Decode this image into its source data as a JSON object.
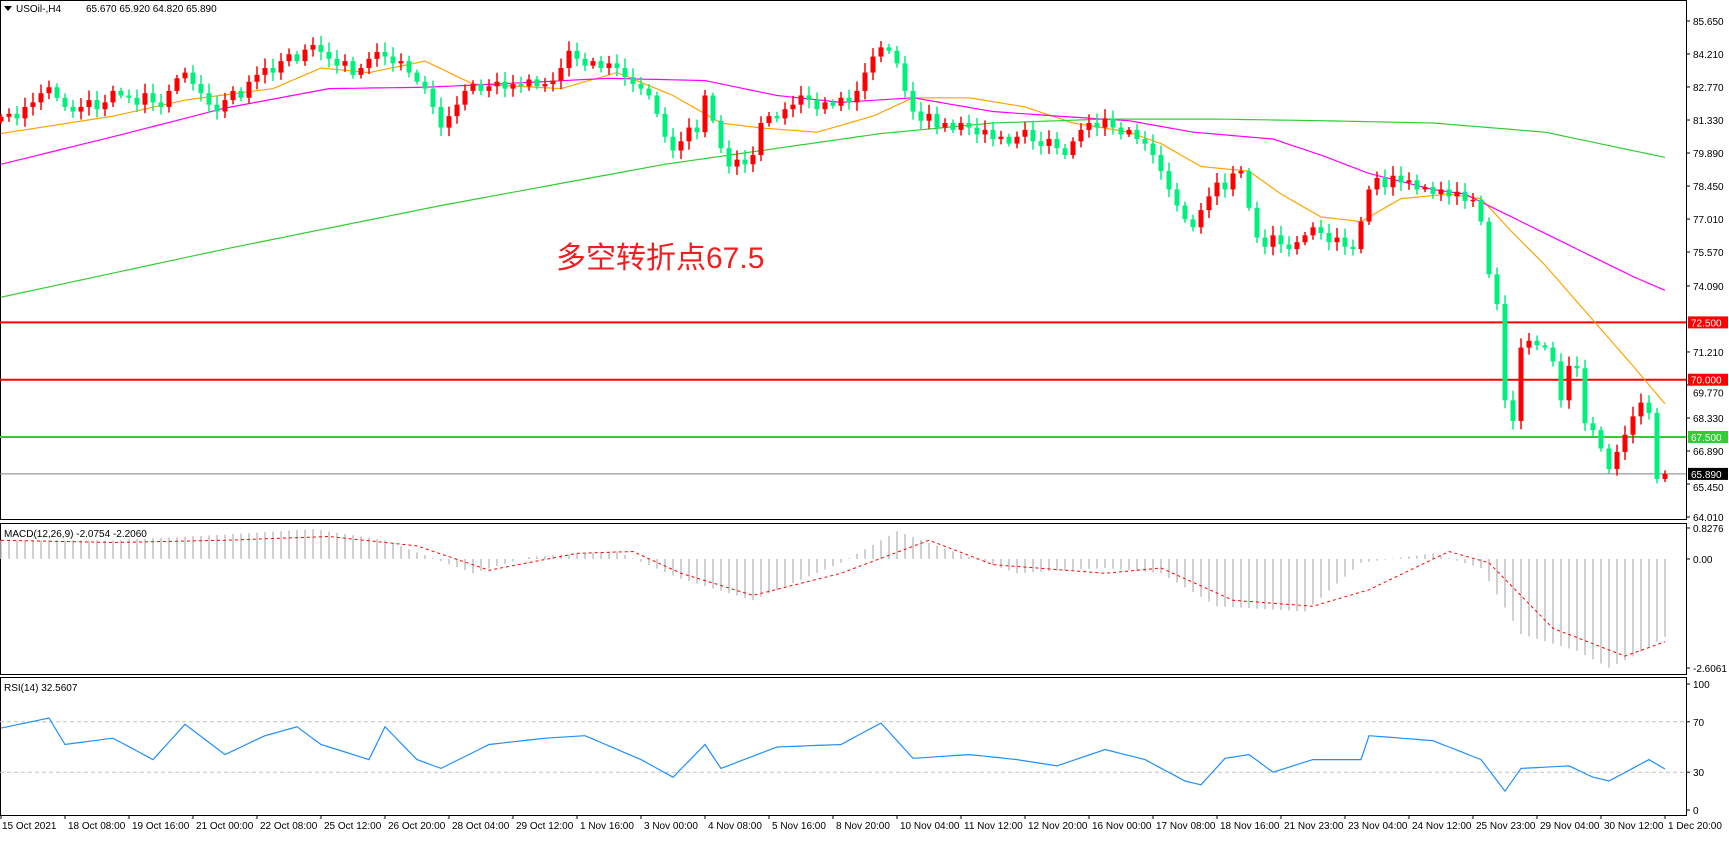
{
  "header": {
    "symbol": "USOil-,H4",
    "ohlc": "65.670 65.920 64.820 65.890"
  },
  "annotation": "多空转折点67.5",
  "colors": {
    "up": "#ff0000",
    "down": "#00f07c",
    "ma_fast": "#ffa500",
    "ma_mid": "#ff00ff",
    "ma_slow": "#32cd32",
    "level_red": "#ff0000",
    "level_green": "#32cd32",
    "macd_hist": "#c0c0c0",
    "macd_signal": "#ff0000",
    "rsi": "#1e90ff"
  },
  "price_axis": [
    "85.650",
    "84.210",
    "82.770",
    "81.330",
    "79.890",
    "78.450",
    "77.010",
    "75.570",
    "74.090",
    "71.210",
    "69.770",
    "68.330",
    "66.890",
    "65.450",
    "64.010"
  ],
  "levels": [
    {
      "label": "72.500",
      "value": 72.5,
      "color": "#ff0000"
    },
    {
      "label": "70.000",
      "value": 70.0,
      "color": "#ff0000"
    },
    {
      "label": "67.500",
      "value": 67.5,
      "color": "#32cd32"
    }
  ],
  "current_price": {
    "label": "65.890",
    "value": 65.89
  },
  "macd": {
    "title": "MACD(12,26,9) -2.0754 -2.2060",
    "axis": [
      "0.8276",
      "0.00",
      "-2.6061"
    ]
  },
  "rsi": {
    "title": "RSI(14) 32.5607",
    "axis": [
      "100",
      "70",
      "30",
      "0"
    ],
    "levels": [
      70,
      30
    ]
  },
  "time_axis": [
    "15 Oct 2021",
    "18 Oct 08:00",
    "19 Oct 16:00",
    "21 Oct 00:00",
    "22 Oct 08:00",
    "25 Oct 12:00",
    "26 Oct 20:00",
    "28 Oct 04:00",
    "29 Oct 12:00",
    "1 Nov 16:00",
    "3 Nov 00:00",
    "4 Nov 08:00",
    "5 Nov 16:00",
    "8 Nov 20:00",
    "10 Nov 04:00",
    "11 Nov 12:00",
    "12 Nov 20:00",
    "16 Nov 00:00",
    "17 Nov 08:00",
    "18 Nov 16:00",
    "21 Nov 23:00",
    "23 Nov 04:00",
    "24 Nov 12:00",
    "25 Nov 23:00",
    "29 Nov 04:00",
    "30 Nov 12:00",
    "1 Dec 20:00"
  ],
  "chart_data": {
    "type": "candlestick",
    "timeframe": "H4",
    "ylim": [
      64.01,
      85.65
    ],
    "close": [
      81.47,
      81.6,
      81.4,
      81.9,
      82.1,
      82.5,
      82.76,
      82.3,
      81.9,
      81.7,
      81.9,
      82.2,
      81.8,
      82.1,
      82.6,
      82.4,
      82.3,
      82.0,
      82.5,
      82.1,
      81.9,
      82.6,
      83.15,
      83.4,
      82.9,
      82.5,
      82.0,
      81.7,
      82.2,
      82.6,
      82.3,
      83.0,
      83.3,
      83.6,
      83.4,
      83.9,
      84.2,
      83.9,
      84.4,
      84.6,
      84.3,
      84.0,
      83.7,
      83.9,
      83.3,
      83.6,
      84.0,
      84.3,
      84.1,
      83.8,
      83.9,
      83.4,
      83.0,
      82.7,
      81.9,
      81.0,
      81.5,
      82.0,
      82.6,
      82.9,
      82.6,
      82.8,
      83.0,
      82.7,
      82.9,
      82.8,
      83.1,
      82.8,
      82.9,
      83.05,
      83.6,
      84.35,
      84.0,
      83.7,
      83.9,
      83.6,
      83.8,
      83.6,
      83.2,
      82.9,
      82.7,
      82.4,
      81.6,
      80.6,
      80.0,
      80.4,
      81.0,
      80.8,
      82.4,
      81.3,
      80.1,
      79.3,
      79.6,
      79.4,
      79.8,
      81.2,
      81.5,
      81.4,
      81.8,
      82.0,
      82.4,
      82.2,
      81.8,
      82.1,
      81.95,
      82.3,
      82.1,
      82.6,
      83.4,
      84.1,
      84.5,
      84.35,
      83.8,
      82.6,
      81.7,
      81.3,
      81.6,
      81.0,
      81.2,
      80.9,
      81.2,
      81.0,
      80.7,
      80.9,
      80.5,
      80.6,
      80.3,
      80.6,
      80.9,
      80.4,
      80.2,
      80.5,
      80.1,
      79.8,
      80.4,
      80.9,
      81.2,
      81.0,
      81.4,
      81.0,
      80.7,
      80.9,
      80.5,
      80.3,
      79.8,
      79.1,
      78.3,
      77.6,
      77.0,
      76.65,
      77.4,
      78.0,
      78.6,
      78.3,
      79.0,
      79.1,
      77.5,
      76.2,
      75.8,
      76.3,
      75.9,
      75.7,
      76.0,
      76.3,
      76.65,
      76.4,
      76.0,
      76.2,
      75.8,
      75.7,
      76.9,
      78.3,
      78.8,
      78.4,
      78.9,
      78.6,
      78.7,
      78.3,
      78.4,
      78.1,
      78.3,
      78.0,
      78.2,
      77.8,
      77.85,
      76.9,
      74.6,
      73.3,
      69.1,
      68.2,
      71.4,
      71.7,
      71.5,
      71.4,
      70.8,
      69.1,
      70.6,
      70.5,
      68.1,
      67.8,
      67.0,
      66.1,
      66.85,
      67.6,
      68.4,
      69.0,
      68.55,
      65.67,
      65.89
    ],
    "moving_averages": [
      {
        "color": "#ffa500",
        "points": [
          [
            0,
            80.74
          ],
          [
            14,
            81.5
          ],
          [
            23,
            82.2
          ],
          [
            34,
            82.7
          ],
          [
            40,
            83.6
          ],
          [
            46,
            83.4
          ],
          [
            53,
            83.9
          ],
          [
            59,
            82.9
          ],
          [
            70,
            82.7
          ],
          [
            77,
            83.4
          ],
          [
            84,
            82.4
          ],
          [
            90,
            81.2
          ],
          [
            95,
            80.98
          ],
          [
            102,
            80.8
          ],
          [
            109,
            81.5
          ],
          [
            114,
            82.3
          ],
          [
            121,
            82.3
          ],
          [
            128,
            81.9
          ],
          [
            134,
            81.2
          ],
          [
            141,
            80.8
          ],
          [
            145,
            80.3
          ],
          [
            150,
            79.3
          ],
          [
            156,
            79.1
          ],
          [
            160,
            78.1
          ],
          [
            165,
            77.1
          ],
          [
            170,
            76.9
          ],
          [
            175,
            77.9
          ],
          [
            181,
            78.1
          ],
          [
            185,
            77.9
          ],
          [
            189,
            76.4
          ],
          [
            193,
            75.0
          ],
          [
            199,
            72.6
          ],
          [
            204,
            70.6
          ],
          [
            208,
            68.95
          ]
        ]
      },
      {
        "color": "#ff00ff",
        "points": [
          [
            0,
            79.4
          ],
          [
            14,
            80.6
          ],
          [
            28,
            81.85
          ],
          [
            41,
            82.7
          ],
          [
            53,
            82.76
          ],
          [
            62,
            82.9
          ],
          [
            76,
            83.15
          ],
          [
            88,
            83.05
          ],
          [
            97,
            82.4
          ],
          [
            105,
            82.1
          ],
          [
            114,
            82.3
          ],
          [
            124,
            81.7
          ],
          [
            132,
            81.5
          ],
          [
            141,
            81.3
          ],
          [
            149,
            80.8
          ],
          [
            159,
            80.5
          ],
          [
            165,
            79.8
          ],
          [
            171,
            79.0
          ],
          [
            179,
            78.3
          ],
          [
            183,
            78.1
          ],
          [
            190,
            76.9
          ],
          [
            197,
            75.7
          ],
          [
            204,
            74.5
          ],
          [
            208,
            73.9
          ]
        ]
      },
      {
        "color": "#32cd32",
        "points": [
          [
            0,
            73.6
          ],
          [
            28,
            75.7
          ],
          [
            55,
            77.6
          ],
          [
            83,
            79.4
          ],
          [
            110,
            80.74
          ],
          [
            124,
            81.2
          ],
          [
            138,
            81.37
          ],
          [
            152,
            81.37
          ],
          [
            165,
            81.3
          ],
          [
            179,
            81.2
          ],
          [
            193,
            80.8
          ],
          [
            208,
            79.7
          ]
        ]
      }
    ],
    "macd_main": [
      [
        0,
        0.5
      ],
      [
        14,
        0.5
      ],
      [
        28,
        0.65
      ],
      [
        39,
        0.8
      ],
      [
        48,
        0.5
      ],
      [
        59,
        -0.38
      ],
      [
        66,
        0.06
      ],
      [
        77,
        0.2
      ],
      [
        85,
        -0.53
      ],
      [
        94,
        -1.1
      ],
      [
        105,
        -0.1
      ],
      [
        112,
        0.74
      ],
      [
        119,
        0.2
      ],
      [
        127,
        -0.38
      ],
      [
        138,
        -0.24
      ],
      [
        145,
        -0.38
      ],
      [
        152,
        -1.26
      ],
      [
        163,
        -1.4
      ],
      [
        170,
        -0.1
      ],
      [
        179,
        0.15
      ],
      [
        185,
        -0.24
      ],
      [
        190,
        -2.0
      ],
      [
        197,
        -2.45
      ],
      [
        201,
        -2.9
      ],
      [
        204,
        -2.6
      ],
      [
        208,
        -2.0754
      ]
    ],
    "macd_signal": [
      [
        0,
        0.5
      ],
      [
        14,
        0.44
      ],
      [
        28,
        0.5
      ],
      [
        41,
        0.6
      ],
      [
        52,
        0.35
      ],
      [
        61,
        -0.3
      ],
      [
        72,
        0.15
      ],
      [
        79,
        0.2
      ],
      [
        85,
        -0.38
      ],
      [
        94,
        -0.97
      ],
      [
        105,
        -0.38
      ],
      [
        116,
        0.5
      ],
      [
        124,
        -0.15
      ],
      [
        138,
        -0.38
      ],
      [
        145,
        -0.24
      ],
      [
        154,
        -1.1
      ],
      [
        164,
        -1.26
      ],
      [
        171,
        -0.82
      ],
      [
        181,
        0.2
      ],
      [
        186,
        -0.1
      ],
      [
        194,
        -1.85
      ],
      [
        203,
        -2.59
      ],
      [
        208,
        -2.206
      ]
    ],
    "rsi": [
      [
        0,
        65
      ],
      [
        6,
        73
      ],
      [
        8,
        52
      ],
      [
        14,
        57
      ],
      [
        19,
        40
      ],
      [
        23,
        68
      ],
      [
        28,
        44
      ],
      [
        33,
        59
      ],
      [
        37,
        66
      ],
      [
        40,
        52
      ],
      [
        46,
        40
      ],
      [
        48,
        66
      ],
      [
        52,
        40
      ],
      [
        55,
        33
      ],
      [
        61,
        52
      ],
      [
        68,
        57
      ],
      [
        73,
        59
      ],
      [
        80,
        40
      ],
      [
        84,
        26
      ],
      [
        88,
        52
      ],
      [
        90,
        33
      ],
      [
        97,
        50
      ],
      [
        105,
        52
      ],
      [
        110,
        69
      ],
      [
        114,
        41
      ],
      [
        121,
        44
      ],
      [
        127,
        40
      ],
      [
        132,
        35
      ],
      [
        138,
        48
      ],
      [
        143,
        40
      ],
      [
        148,
        23
      ],
      [
        150,
        20
      ],
      [
        153,
        41
      ],
      [
        156,
        44
      ],
      [
        159,
        30
      ],
      [
        164,
        40
      ],
      [
        170,
        40
      ],
      [
        171,
        59
      ],
      [
        179,
        55
      ],
      [
        185,
        40
      ],
      [
        188,
        15
      ],
      [
        190,
        33
      ],
      [
        196,
        35
      ],
      [
        199,
        26
      ],
      [
        201,
        23
      ],
      [
        206,
        40
      ],
      [
        208,
        32.56
      ]
    ]
  }
}
